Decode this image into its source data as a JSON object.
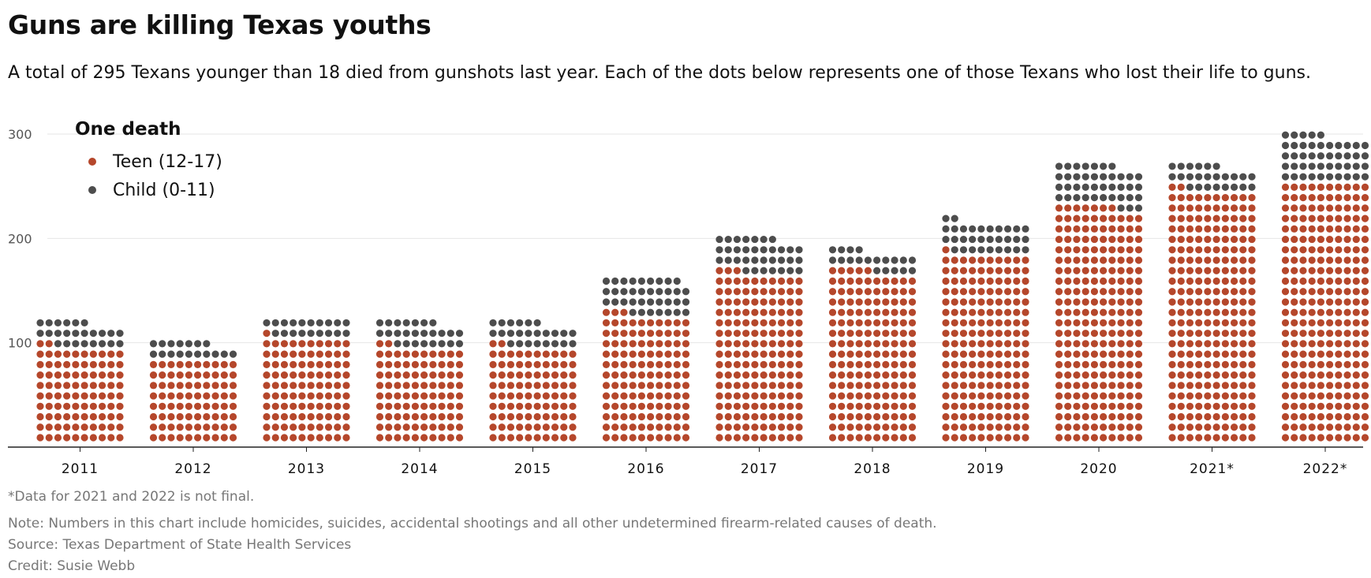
{
  "title": "Guns are killing Texas youths",
  "subtitle": "A total of 295 Texans younger than 18 died from gunshots last year. Each of the dots below represents one of those Texans who lost their life to guns.",
  "footnotes": {
    "not_final": "*Data for 2021 and 2022 is not final.",
    "note": "Note: Numbers in this chart include homicides, suicides, accidental shootings and all other undetermined firearm-related causes of death.",
    "source": "Source: Texas Department of State Health Services",
    "credit": "Credit: Susie Webb"
  },
  "legend": {
    "title": "One death",
    "items": [
      {
        "label": "Teen (12-17)",
        "color": "#b5472b"
      },
      {
        "label": "Child (0-11)",
        "color": "#4d4d4d"
      }
    ]
  },
  "colors": {
    "teen": "#b5472b",
    "child": "#4d4d4d",
    "grid": "#e6e6e6",
    "axis": "#222222"
  },
  "chart_data": {
    "type": "bar",
    "encoding": "unit dots, one dot per death, stacked",
    "categories": [
      "2011",
      "2012",
      "2013",
      "2014",
      "2015",
      "2016",
      "2017",
      "2018",
      "2019",
      "2020",
      "2021*",
      "2022*"
    ],
    "series": [
      {
        "name": "Teen (12-17)",
        "values": [
          92,
          80,
          101,
          92,
          92,
          123,
          163,
          165,
          181,
          227,
          242,
          250
        ]
      },
      {
        "name": "Child (0-11)",
        "values": [
          24,
          17,
          19,
          25,
          24,
          36,
          34,
          19,
          31,
          40,
          24,
          45
        ]
      }
    ],
    "y_ticks": [
      100,
      200,
      300
    ],
    "ylim": [
      0,
      300
    ],
    "grid": true,
    "legend_position": "top-left"
  }
}
